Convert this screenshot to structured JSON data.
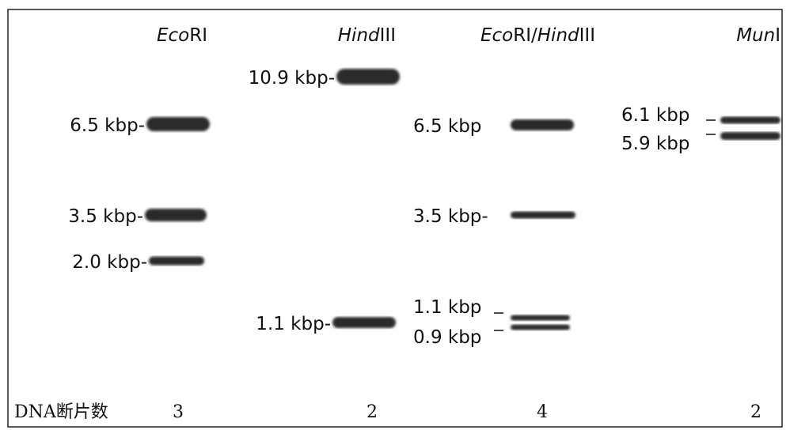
{
  "lanes": [
    {
      "header": [
        {
          "text": "Eco",
          "italic": true
        },
        {
          "text": "RI",
          "italic": false
        }
      ],
      "bands": [
        {
          "label": "6.5 kbp-"
        },
        {
          "label": "3.5 kbp-"
        },
        {
          "label": "2.0 kbp-"
        }
      ],
      "fragment_count": 3
    },
    {
      "header": [
        {
          "text": "Hind",
          "italic": true
        },
        {
          "text": "III",
          "italic": false
        }
      ],
      "bands": [
        {
          "label": "10.9 kbp-"
        },
        {
          "label": "1.1 kbp-"
        }
      ],
      "fragment_count": 2
    },
    {
      "header": [
        {
          "text": "Eco",
          "italic": true
        },
        {
          "text": "RI/",
          "italic": false
        },
        {
          "text": "Hind",
          "italic": true
        },
        {
          "text": "III",
          "italic": false
        }
      ],
      "bands": [
        {
          "label": "6.5 kbp"
        },
        {
          "label": "3.5 kbp-"
        },
        {
          "label": "1.1 kbp"
        },
        {
          "label": "0.9 kbp"
        }
      ],
      "fragment_count": 4
    },
    {
      "header": [
        {
          "text": "Mun",
          "italic": true
        },
        {
          "text": "I",
          "italic": false
        }
      ],
      "bands": [
        {
          "label": "6.1 kbp"
        },
        {
          "label": "5.9 kbp"
        }
      ],
      "fragment_count": 2
    }
  ],
  "footer": {
    "label": "DNA断片数"
  }
}
